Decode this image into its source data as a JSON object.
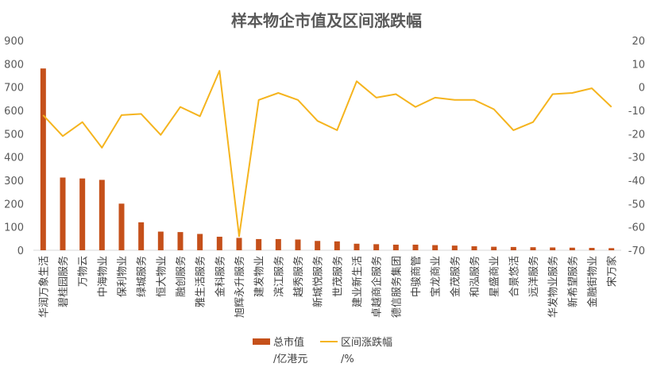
{
  "chart_data": {
    "type": "bar",
    "title": "样本物企市值及区间涨跌幅",
    "categories": [
      "华润万象生活",
      "碧桂园服务",
      "万物云",
      "中海物业",
      "保利物业",
      "绿城服务",
      "恒大物业",
      "融创服务",
      "雅生活服务",
      "金科服务",
      "旭辉永升服务",
      "建发物业",
      "滨江服务",
      "越秀服务",
      "新城悦服务",
      "世茂服务",
      "建业新生活",
      "卓越商企服务",
      "德信服务集团",
      "中骏商管",
      "宝龙商业",
      "金茂服务",
      "和泓服务",
      "星盛商业",
      "合景悠活",
      "远洋服务",
      "华发物业服务",
      "新希望服务",
      "金融街物业",
      "宋万家"
    ],
    "series": [
      {
        "name": "总市值",
        "unit": "/亿港元",
        "type": "bar",
        "axis": "left",
        "color": "#C5501A",
        "values": [
          780,
          312,
          308,
          302,
          200,
          120,
          80,
          78,
          70,
          58,
          53,
          48,
          48,
          46,
          40,
          38,
          28,
          26,
          24,
          24,
          22,
          20,
          17,
          15,
          14,
          13,
          12,
          11,
          10,
          9
        ]
      },
      {
        "name": "区间涨跌幅",
        "unit": "/%",
        "type": "line",
        "axis": "right",
        "color": "#F5B41E",
        "values": [
          -12,
          -21,
          -15,
          -26,
          -12,
          -11.5,
          -20.5,
          -8.5,
          -12.5,
          7,
          -64,
          -5.5,
          -2.5,
          -5.5,
          -14.5,
          -18.5,
          2.5,
          -4.5,
          -3,
          -8.5,
          -4.5,
          -5.5,
          -5.5,
          -9.5,
          -18.5,
          -15,
          -3,
          -2.5,
          -0.5,
          -8.5
        ]
      }
    ],
    "y_left": {
      "ticks": [
        "0",
        "100",
        "200",
        "300",
        "400",
        "500",
        "600",
        "700",
        "800",
        "900"
      ],
      "range": [
        0,
        900
      ]
    },
    "y_right": {
      "ticks": [
        "-70",
        "-60",
        "-50",
        "-40",
        "-30",
        "-20",
        "-10",
        "0",
        "10",
        "20"
      ],
      "range": [
        -70,
        20
      ]
    },
    "legend_position": "bottom-left",
    "grid": false
  }
}
